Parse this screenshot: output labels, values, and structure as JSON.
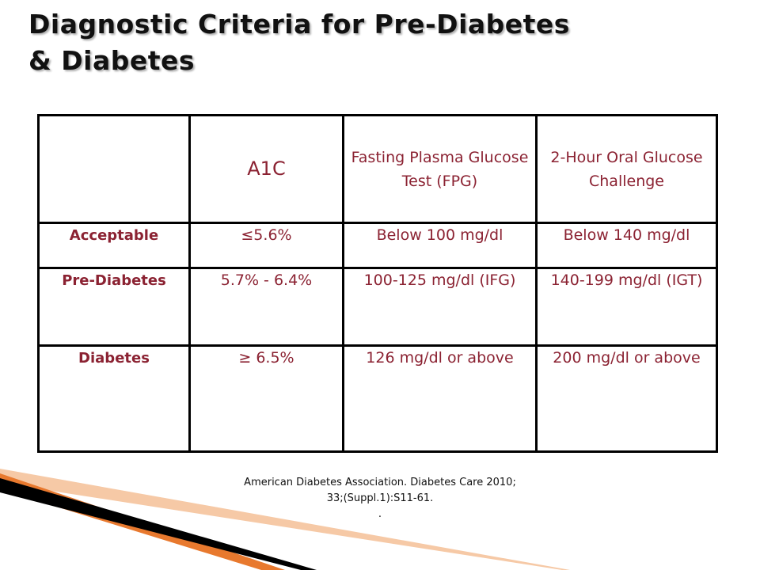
{
  "title": {
    "line1": "Diagnostic Criteria for Pre-Diabetes",
    "line2": "& Diabetes"
  },
  "table": {
    "headers": [
      "",
      "A1C",
      "Fasting Plasma Glucose Test (FPG)",
      "2-Hour Oral Glucose Challenge"
    ],
    "rows": [
      {
        "label": "Acceptable",
        "a1c": "≤5.6%",
        "fpg": "Below 100 mg/dl",
        "ogtt": "Below 140 mg/dl"
      },
      {
        "label": "Pre-Diabetes",
        "a1c": "5.7% - 6.4%",
        "fpg": "100-125 mg/dl (IFG)",
        "ogtt": "140-199 mg/dl (IGT)"
      },
      {
        "label": "Diabetes",
        "a1c": "≥ 6.5%",
        "fpg": "126 mg/dl or above",
        "ogtt": "200 mg/dl or above"
      }
    ]
  },
  "citation": {
    "line1": "American Diabetes Association. Diabetes Care 2010;",
    "line2": "33;(Suppl.1):S11-61.",
    "line3": "."
  },
  "colors": {
    "cell_text": "#8b2232",
    "border": "#000000",
    "accent_orange": "#e8792e",
    "accent_peach": "#f6c9a6",
    "accent_dark": "#000000"
  }
}
